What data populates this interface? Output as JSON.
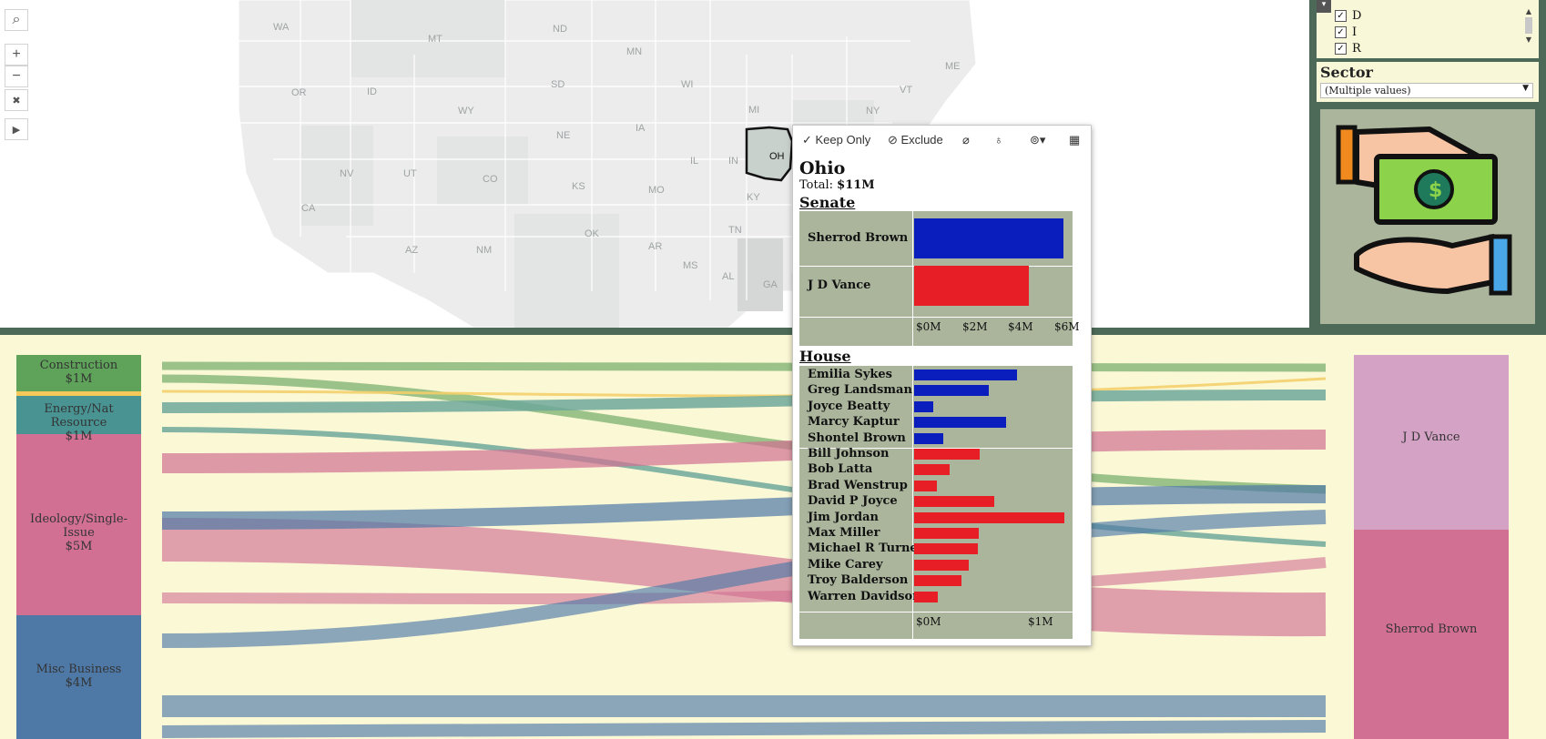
{
  "map": {
    "states": [
      "WA",
      "MT",
      "ND",
      "MN",
      "ME",
      "OR",
      "ID",
      "WY",
      "SD",
      "WI",
      "MI",
      "NY",
      "VT",
      "NE",
      "IA",
      "IL",
      "IN",
      "OH",
      "NV",
      "UT",
      "CO",
      "KS",
      "MO",
      "KY",
      "CA",
      "OK",
      "AR",
      "TN",
      "AZ",
      "NM",
      "MS",
      "AL",
      "GA"
    ],
    "highlighted_state": "OH"
  },
  "map_toolbar": {
    "search_icon": "⌕",
    "zoom_in": "+",
    "zoom_out": "−",
    "reset_icon": "✖",
    "play_icon": "▶"
  },
  "party_filter": {
    "items": [
      {
        "label": "D",
        "checked": true
      },
      {
        "label": "I",
        "checked": true
      },
      {
        "label": "R",
        "checked": true
      }
    ]
  },
  "sector_filter": {
    "title": "Sector",
    "selected": "(Multiple values)"
  },
  "sankey": {
    "sectors": [
      {
        "name": "Construction",
        "amount": "$1M"
      },
      {
        "name": "Energy/Nat Resource",
        "amount": "$1M"
      },
      {
        "name": "Ideology/Single-Issue",
        "amount": "$5M"
      },
      {
        "name": "Misc Business",
        "amount": "$4M"
      }
    ],
    "candidates": [
      {
        "name": "J D Vance"
      },
      {
        "name": "Sherrod Brown"
      }
    ]
  },
  "tooltip": {
    "actions": {
      "keep_only": "Keep Only",
      "exclude": "Exclude"
    },
    "state": "Ohio",
    "total_label": "Total:",
    "total_value": "$11M",
    "senate": {
      "title": "Senate",
      "candidates": [
        {
          "name": "Sherrod Brown",
          "party": "D",
          "value_m": 6.5
        },
        {
          "name": "J D Vance",
          "party": "R",
          "value_m": 5.0
        }
      ],
      "axis_ticks": [
        "$0M",
        "$2M",
        "$4M",
        "$6M"
      ],
      "axis_max": 6.8
    },
    "house": {
      "title": "House",
      "candidates": [
        {
          "name": "Emilia Sykes",
          "party": "D",
          "value_m": 0.92
        },
        {
          "name": "Greg Landsman",
          "party": "D",
          "value_m": 0.67
        },
        {
          "name": "Joyce Beatty",
          "party": "D",
          "value_m": 0.17
        },
        {
          "name": "Marcy Kaptur",
          "party": "D",
          "value_m": 0.82
        },
        {
          "name": "Shontel Brown",
          "party": "D",
          "value_m": 0.26
        },
        {
          "name": "Bill Johnson",
          "party": "R",
          "value_m": 0.59
        },
        {
          "name": "Bob Latta",
          "party": "R",
          "value_m": 0.32
        },
        {
          "name": "Brad Wenstrup",
          "party": "R",
          "value_m": 0.2
        },
        {
          "name": "David P Joyce",
          "party": "R",
          "value_m": 0.72
        },
        {
          "name": "Jim Jordan",
          "party": "R",
          "value_m": 1.34
        },
        {
          "name": "Max Miller",
          "party": "R",
          "value_m": 0.58
        },
        {
          "name": "Michael R Turner",
          "party": "R",
          "value_m": 0.57
        },
        {
          "name": "Mike Carey",
          "party": "R",
          "value_m": 0.49
        },
        {
          "name": "Troy Balderson",
          "party": "R",
          "value_m": 0.42
        },
        {
          "name": "Warren Davidson",
          "party": "R",
          "value_m": 0.21
        }
      ],
      "axis_ticks": [
        "$0M",
        "$1M"
      ],
      "axis_max": 1.4
    }
  },
  "colors": {
    "dem": "#0a1ebd",
    "rep": "#e81e26",
    "chart_bg": "#aab59c",
    "panel_green": "#4d6a58",
    "cream": "#fbf8d6"
  }
}
